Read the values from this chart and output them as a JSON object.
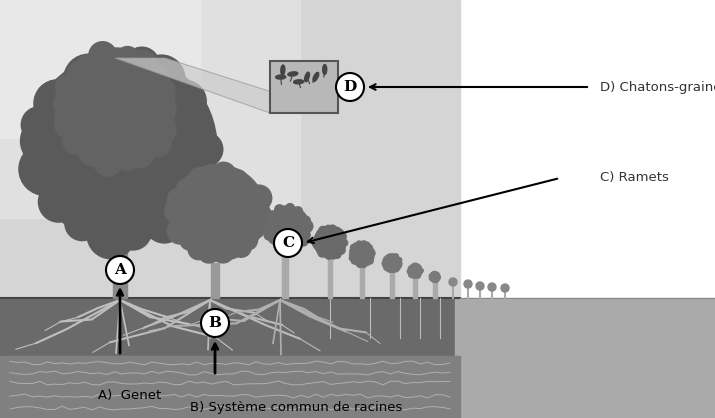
{
  "bg_left": "#d8d8d8",
  "bg_right": "#f0f0f0",
  "ground_top_color": "#6a6a6a",
  "ground_bottom_color": "#888888",
  "soil_bg": "#888888",
  "tree_dark": "#5a5a5a",
  "tree_mid": "#6a6a6a",
  "trunk_color": "#888888",
  "root_color": "#c0c0c0",
  "label_A": "A",
  "label_B": "B",
  "label_C": "C",
  "label_D": "D",
  "text_A": "A)  Genet",
  "text_B": "B) Système commun de racines",
  "text_C": "C) Ramets",
  "text_D": "D) Chatons-graines",
  "figure_width": 7.15,
  "figure_height": 4.18,
  "dpi": 100
}
